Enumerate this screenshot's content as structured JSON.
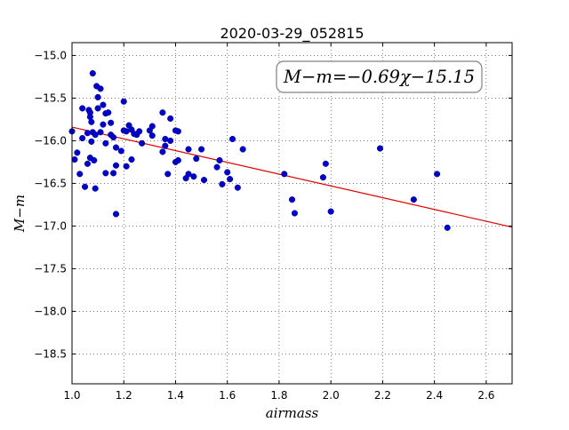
{
  "chart_data": {
    "type": "scatter",
    "title": "2020-03-29_052815",
    "xlabel": "airmass",
    "ylabel": "M−m",
    "xlim": [
      1.0,
      2.7
    ],
    "ylim": [
      -18.85,
      -14.85
    ],
    "y_inverted": true,
    "grid": true,
    "x_ticks": [
      1.0,
      1.2,
      1.4,
      1.6,
      1.8,
      2.0,
      2.2,
      2.4,
      2.6
    ],
    "x_tick_labels": [
      "1.0",
      "1.2",
      "1.4",
      "1.6",
      "1.8",
      "2.0",
      "2.2",
      "2.4",
      "2.6"
    ],
    "y_ticks": [
      -15.0,
      -15.5,
      -16.0,
      -16.5,
      -17.0,
      -17.5,
      -18.0,
      -18.5
    ],
    "y_tick_labels": [
      "−15.0",
      "−15.5",
      "−16.0",
      "−16.5",
      "−17.0",
      "−17.5",
      "−18.0",
      "−18.5"
    ],
    "annotation": "M−m=−0.69χ−15.15",
    "annotation_position": "top-right",
    "fit": {
      "slope": -0.69,
      "intercept": -15.15,
      "color": "#dd0000"
    },
    "series": [
      {
        "marker_color": "#0000cc",
        "points": [
          [
            1.0,
            -15.89
          ],
          [
            1.01,
            -16.22
          ],
          [
            1.02,
            -16.14
          ],
          [
            1.03,
            -16.39
          ],
          [
            1.04,
            -15.62
          ],
          [
            1.04,
            -15.97
          ],
          [
            1.05,
            -16.54
          ],
          [
            1.06,
            -15.91
          ],
          [
            1.06,
            -16.27
          ],
          [
            1.065,
            -15.64
          ],
          [
            1.07,
            -15.67
          ],
          [
            1.07,
            -15.72
          ],
          [
            1.075,
            -15.78
          ],
          [
            1.075,
            -16.01
          ],
          [
            1.07,
            -16.2
          ],
          [
            1.08,
            -15.21
          ],
          [
            1.08,
            -15.9
          ],
          [
            1.085,
            -16.23
          ],
          [
            1.09,
            -15.93
          ],
          [
            1.09,
            -16.56
          ],
          [
            1.095,
            -15.36
          ],
          [
            1.1,
            -15.49
          ],
          [
            1.1,
            -15.62
          ],
          [
            1.11,
            -15.39
          ],
          [
            1.11,
            -15.9
          ],
          [
            1.12,
            -15.58
          ],
          [
            1.12,
            -15.81
          ],
          [
            1.13,
            -15.68
          ],
          [
            1.13,
            -16.03
          ],
          [
            1.13,
            -16.38
          ],
          [
            1.14,
            -15.67
          ],
          [
            1.15,
            -15.79
          ],
          [
            1.15,
            -15.93
          ],
          [
            1.16,
            -15.96
          ],
          [
            1.16,
            -16.38
          ],
          [
            1.17,
            -16.08
          ],
          [
            1.17,
            -16.29
          ],
          [
            1.17,
            -16.86
          ],
          [
            1.19,
            -16.12
          ],
          [
            1.2,
            -15.54
          ],
          [
            1.2,
            -15.88
          ],
          [
            1.21,
            -15.89
          ],
          [
            1.21,
            -16.3
          ],
          [
            1.22,
            -15.82
          ],
          [
            1.23,
            -15.87
          ],
          [
            1.23,
            -16.22
          ],
          [
            1.24,
            -15.92
          ],
          [
            1.25,
            -15.93
          ],
          [
            1.26,
            -15.89
          ],
          [
            1.27,
            -16.03
          ],
          [
            1.3,
            -15.88
          ],
          [
            1.31,
            -15.83
          ],
          [
            1.31,
            -15.94
          ],
          [
            1.35,
            -15.67
          ],
          [
            1.35,
            -16.13
          ],
          [
            1.36,
            -15.98
          ],
          [
            1.36,
            -16.06
          ],
          [
            1.37,
            -16.39
          ],
          [
            1.38,
            -15.74
          ],
          [
            1.38,
            -16.0
          ],
          [
            1.4,
            -15.88
          ],
          [
            1.4,
            -16.25
          ],
          [
            1.41,
            -15.89
          ],
          [
            1.41,
            -16.23
          ],
          [
            1.44,
            -16.44
          ],
          [
            1.45,
            -16.1
          ],
          [
            1.45,
            -16.39
          ],
          [
            1.47,
            -16.42
          ],
          [
            1.48,
            -16.21
          ],
          [
            1.5,
            -16.1
          ],
          [
            1.51,
            -16.46
          ],
          [
            1.56,
            -16.31
          ],
          [
            1.57,
            -16.23
          ],
          [
            1.58,
            -16.51
          ],
          [
            1.6,
            -16.37
          ],
          [
            1.61,
            -16.45
          ],
          [
            1.62,
            -15.98
          ],
          [
            1.64,
            -16.55
          ],
          [
            1.66,
            -16.1
          ],
          [
            1.82,
            -16.39
          ],
          [
            1.85,
            -16.69
          ],
          [
            1.86,
            -16.85
          ],
          [
            1.97,
            -16.43
          ],
          [
            1.98,
            -16.27
          ],
          [
            2.0,
            -16.83
          ],
          [
            2.19,
            -16.09
          ],
          [
            2.32,
            -16.69
          ],
          [
            2.41,
            -16.39
          ],
          [
            2.45,
            -17.02
          ]
        ]
      }
    ]
  }
}
